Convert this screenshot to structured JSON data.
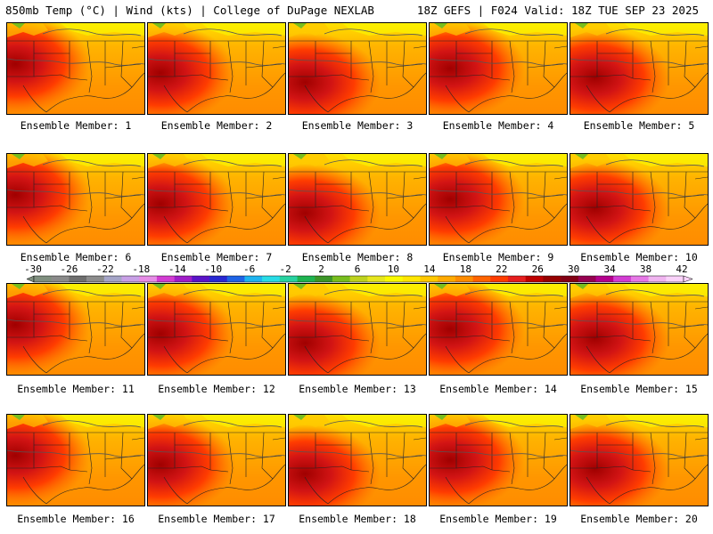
{
  "header": {
    "left": "850mb Temp (°C) | Wind (kts) | College of DuPage NEXLAB",
    "right": "18Z GEFS | F024 Valid: 18Z TUE SEP 23 2025"
  },
  "members": [
    "Ensemble Member: 1",
    "Ensemble Member: 2",
    "Ensemble Member: 3",
    "Ensemble Member: 4",
    "Ensemble Member: 5",
    "Ensemble Member: 6",
    "Ensemble Member: 7",
    "Ensemble Member: 8",
    "Ensemble Member: 9",
    "Ensemble Member: 10",
    "Ensemble Member: 11",
    "Ensemble Member: 12",
    "Ensemble Member: 13",
    "Ensemble Member: 14",
    "Ensemble Member: 15",
    "Ensemble Member: 16",
    "Ensemble Member: 17",
    "Ensemble Member: 18",
    "Ensemble Member: 19",
    "Ensemble Member: 20"
  ],
  "colorbar": {
    "tick_labels": [
      "-30",
      "-26",
      "-22",
      "-18",
      "-14",
      "-10",
      "-6",
      "-2",
      "2",
      "6",
      "10",
      "14",
      "18",
      "22",
      "26",
      "30",
      "34",
      "38",
      "42"
    ],
    "colors": [
      "#7f8f7f",
      "#8a8a8a",
      "#6e6e6e",
      "#8c8c8c",
      "#a5a5c8",
      "#c8a0e6",
      "#e68ce6",
      "#d23cd2",
      "#a01ec8",
      "#5a14c8",
      "#2828d2",
      "#1e64e6",
      "#1eb4f0",
      "#28dce6",
      "#28d2a0",
      "#1eb450",
      "#3c9628",
      "#78be1e",
      "#bed21e",
      "#e6e61e",
      "#fafa00",
      "#ffe600",
      "#ffc800",
      "#ffaa00",
      "#ff8c00",
      "#ff6400",
      "#ff3c00",
      "#e61e1e",
      "#be0000",
      "#960000",
      "#820014",
      "#960050",
      "#b4008c",
      "#d23cd2",
      "#e678e6",
      "#f0b4f0",
      "#fad2fa"
    ]
  }
}
